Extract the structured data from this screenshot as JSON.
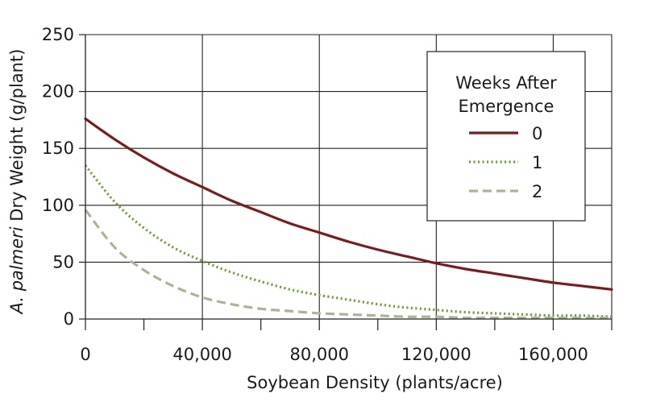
{
  "chart_data": {
    "type": "line",
    "title": "",
    "xlabel": "Soybean Density (plants/acre)",
    "ylabel_italic": "A. palmeri",
    "ylabel_rest": " Dry Weight (g/plant)",
    "xlim": [
      0,
      180000
    ],
    "ylim": [
      0,
      250
    ],
    "xticks": [
      0,
      40000,
      80000,
      120000,
      160000
    ],
    "xtick_labels": [
      "0",
      "40,000",
      "80,000",
      "120,000",
      "160,000"
    ],
    "yticks": [
      0,
      50,
      100,
      150,
      200,
      250
    ],
    "ytick_labels": [
      "0",
      "50",
      "100",
      "150",
      "200",
      "250"
    ],
    "grid": true,
    "legend": {
      "title_line1": "Weeks After",
      "title_line2": "Emergence",
      "placement": "top-right"
    },
    "series": [
      {
        "name": "0",
        "color": "#7b1c1c",
        "style": "solid",
        "x": [
          0,
          10000,
          20000,
          30000,
          40000,
          50000,
          60000,
          70000,
          80000,
          90000,
          100000,
          110000,
          120000,
          130000,
          140000,
          150000,
          160000,
          170000,
          180000
        ],
        "y": [
          176,
          158,
          142,
          128,
          116,
          104,
          94,
          84,
          76,
          68,
          61,
          55,
          49,
          44,
          40,
          36,
          32,
          29,
          26
        ]
      },
      {
        "name": "1",
        "color": "#6aa33b",
        "style": "dotted",
        "x": [
          0,
          10000,
          20000,
          30000,
          40000,
          50000,
          60000,
          70000,
          80000,
          90000,
          100000,
          110000,
          120000,
          130000,
          140000,
          150000,
          160000,
          170000,
          180000
        ],
        "y": [
          135,
          103,
          80,
          63,
          51,
          41,
          33,
          26,
          21,
          17,
          13,
          10,
          8,
          6,
          5,
          4,
          3,
          3,
          2
        ]
      },
      {
        "name": "2",
        "color": "#aab68f",
        "style": "dashed",
        "x": [
          0,
          10000,
          20000,
          30000,
          40000,
          50000,
          60000,
          70000,
          80000,
          90000,
          100000,
          110000,
          120000,
          130000,
          140000,
          150000,
          160000,
          170000,
          180000
        ],
        "y": [
          96,
          63,
          43,
          29,
          19,
          13,
          9,
          7,
          5,
          4,
          3,
          2,
          2,
          1,
          1,
          1,
          1,
          1,
          1
        ]
      }
    ]
  }
}
